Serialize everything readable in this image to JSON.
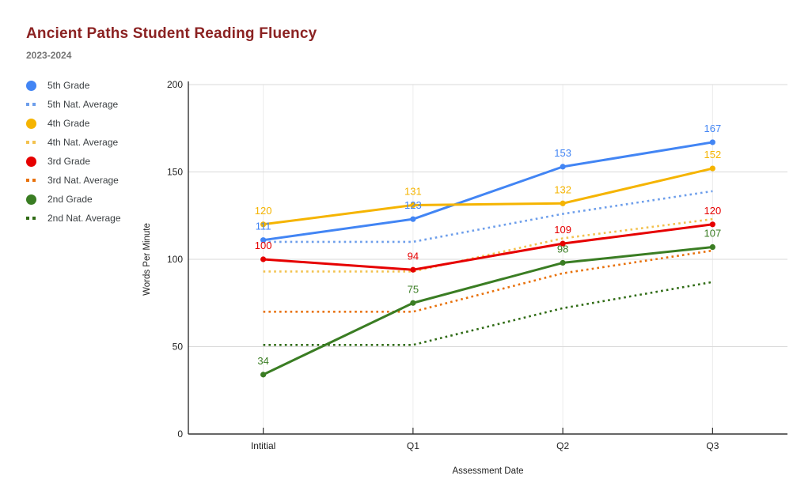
{
  "header": {
    "title": "Ancient Paths Student Reading Fluency",
    "subtitle": "2023-2024"
  },
  "colors": {
    "title": "#8b2222",
    "subtitle": "#757575",
    "axis_line": "#333333",
    "h_gridline": "#d9d9d9",
    "v_gridline": "#ececec",
    "tick_label": "#222222",
    "axis_title": "#222222",
    "legend_text": "#3c4043"
  },
  "chart_data": {
    "type": "line",
    "x": [
      "Intitial",
      "Q1",
      "Q2",
      "Q3"
    ],
    "xlabel": "Assessment Date",
    "ylabel": "Words Per Minute",
    "ylim": [
      0,
      200
    ],
    "yticks": [
      0,
      50,
      100,
      150,
      200
    ],
    "grid": true,
    "legend_position": "left",
    "series": [
      {
        "name": "5th Grade",
        "style": "solid",
        "color": "#4285f4",
        "values": [
          111,
          123,
          153,
          167
        ],
        "labels_shown": true
      },
      {
        "name": "5th Nat. Average",
        "style": "dotted",
        "color": "#6d9eeb",
        "values": [
          110,
          110,
          126,
          139
        ],
        "labels_shown": false
      },
      {
        "name": "4th Grade",
        "style": "solid",
        "color": "#f5b400",
        "values": [
          120,
          131,
          132,
          152
        ],
        "labels_shown": true
      },
      {
        "name": "4th Nat. Average",
        "style": "dotted",
        "color": "#f3c24f",
        "values": [
          93,
          93,
          112,
          123
        ],
        "labels_shown": false
      },
      {
        "name": "3rd Grade",
        "style": "solid",
        "color": "#e60000",
        "values": [
          100,
          94,
          109,
          120
        ],
        "labels_shown": true
      },
      {
        "name": "3rd Nat. Average",
        "style": "dotted",
        "color": "#e8710a",
        "values": [
          70,
          70,
          92,
          105
        ],
        "labels_shown": false
      },
      {
        "name": "2nd Grade",
        "style": "solid",
        "color": "#3a7d23",
        "values": [
          34,
          75,
          98,
          107
        ],
        "labels_shown": true
      },
      {
        "name": "2nd Nat. Average",
        "style": "dotted",
        "color": "#2f6b14",
        "values": [
          51,
          51,
          72,
          87
        ],
        "labels_shown": false
      }
    ]
  }
}
